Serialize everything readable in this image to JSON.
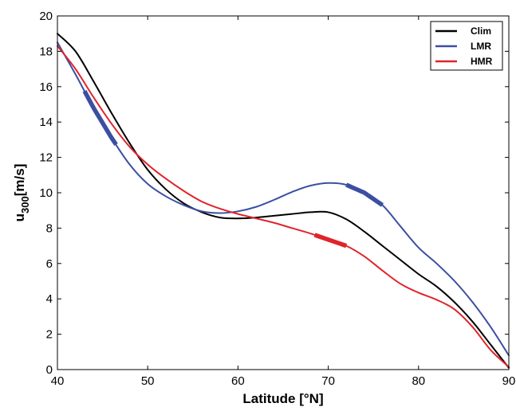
{
  "chart_data": {
    "type": "line",
    "title": "",
    "xlabel": "Latitude [°N]",
    "ylabel_main": "u",
    "ylabel_sub": "300",
    "ylabel_unit": "[m/s]",
    "xlim": [
      40,
      90
    ],
    "ylim": [
      0,
      20
    ],
    "xticks": [
      40,
      50,
      60,
      70,
      80,
      90
    ],
    "yticks": [
      0,
      2,
      4,
      6,
      8,
      10,
      12,
      14,
      16,
      18,
      20
    ],
    "grid": false,
    "legend_position": "top-right",
    "series": [
      {
        "name": "Clim",
        "color": "#000000",
        "x": [
          40,
          42,
          44,
          46,
          48,
          50,
          52,
          54,
          56,
          58,
          60,
          62,
          64,
          66,
          68,
          70,
          72,
          74,
          76,
          78,
          80,
          82,
          84,
          86,
          88,
          90
        ],
        "y": [
          19.0,
          18.0,
          16.3,
          14.5,
          12.8,
          11.3,
          10.2,
          9.4,
          8.9,
          8.6,
          8.55,
          8.6,
          8.7,
          8.8,
          8.9,
          8.9,
          8.5,
          7.8,
          7.0,
          6.2,
          5.4,
          4.7,
          3.8,
          2.7,
          1.4,
          0.1
        ],
        "highlight": []
      },
      {
        "name": "LMR",
        "color": "#3b4fa2",
        "x": [
          40,
          42,
          44,
          46,
          48,
          50,
          52,
          54,
          56,
          58,
          60,
          62,
          64,
          66,
          68,
          70,
          72,
          74,
          76,
          78,
          80,
          82,
          84,
          86,
          88,
          90
        ],
        "y": [
          18.5,
          16.7,
          14.8,
          13.1,
          11.6,
          10.5,
          9.8,
          9.3,
          8.95,
          8.85,
          8.95,
          9.2,
          9.6,
          10.05,
          10.4,
          10.55,
          10.45,
          10.0,
          9.3,
          8.1,
          6.9,
          6.0,
          5.0,
          3.8,
          2.4,
          0.8
        ],
        "highlight": [
          [
            43,
            46.5
          ],
          [
            72,
            76
          ]
        ]
      },
      {
        "name": "HMR",
        "color": "#e0242b",
        "x": [
          40,
          42,
          44,
          46,
          48,
          50,
          52,
          54,
          56,
          58,
          60,
          62,
          64,
          66,
          68,
          70,
          72,
          74,
          76,
          78,
          80,
          82,
          84,
          86,
          88,
          90
        ],
        "y": [
          18.3,
          17.0,
          15.4,
          13.9,
          12.6,
          11.6,
          10.8,
          10.1,
          9.5,
          9.1,
          8.8,
          8.55,
          8.3,
          8.0,
          7.7,
          7.35,
          7.0,
          6.4,
          5.6,
          4.85,
          4.35,
          3.95,
          3.4,
          2.4,
          1.1,
          0.15
        ],
        "highlight": [
          [
            68.5,
            72
          ]
        ]
      }
    ]
  }
}
